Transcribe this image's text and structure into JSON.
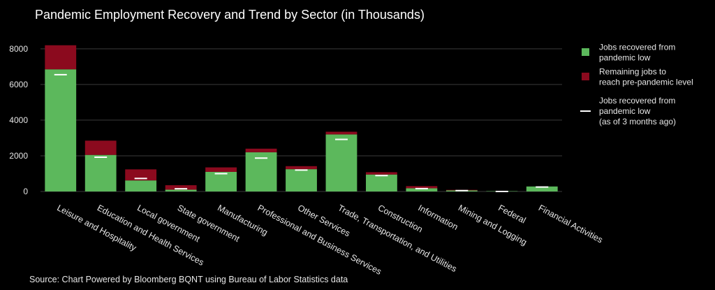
{
  "chart_data": {
    "type": "bar",
    "stacked": true,
    "title": "Pandemic Employment Recovery and Trend by Sector (in Thousands)",
    "categories": [
      "Leisure and Hospitality",
      "Education and Health Services",
      "Local government",
      "State government",
      "Manufacturing",
      "Professional and Business Services",
      "Other Services",
      "Trade, Transportation, and Utilities",
      "Construction",
      "Information",
      "Mining and Logging",
      "Federal",
      "Financial Activities"
    ],
    "series": [
      {
        "name": "Jobs recovered from pandemic low",
        "color": "#5cb85c",
        "values": [
          6850,
          2050,
          620,
          100,
          1100,
          2200,
          1250,
          3200,
          950,
          180,
          60,
          20,
          280
        ]
      },
      {
        "name": "Remaining jobs to reach pre-pandemic level",
        "color": "#8b0a1e",
        "values": [
          1350,
          800,
          620,
          250,
          250,
          200,
          170,
          150,
          130,
          120,
          30,
          0,
          0
        ]
      }
    ],
    "markers": {
      "name": "Jobs recovered from pandemic low (as of 3 months ago)",
      "color": "#ffffff",
      "values": [
        6550,
        1920,
        730,
        150,
        1000,
        1870,
        1200,
        2920,
        890,
        160,
        50,
        0,
        250
      ]
    },
    "ylim": [
      0,
      8700
    ],
    "yticks": [
      0,
      2000,
      4000,
      6000,
      8000
    ],
    "ytick_labels": [
      "0",
      "2000",
      "4000",
      "6000",
      "8000"
    ],
    "grid": true,
    "legend_position": "right",
    "legend_lines": [
      [
        "Jobs recovered from",
        "pandemic low"
      ],
      [
        "Remaining jobs to",
        "reach pre-pandemic level"
      ],
      [
        "Jobs recovered from",
        "pandemic low",
        "(as of 3 months ago)"
      ]
    ],
    "source": "Source: Chart Powered by Bloomberg BQNT using Bureau of Labor Statistics data"
  }
}
